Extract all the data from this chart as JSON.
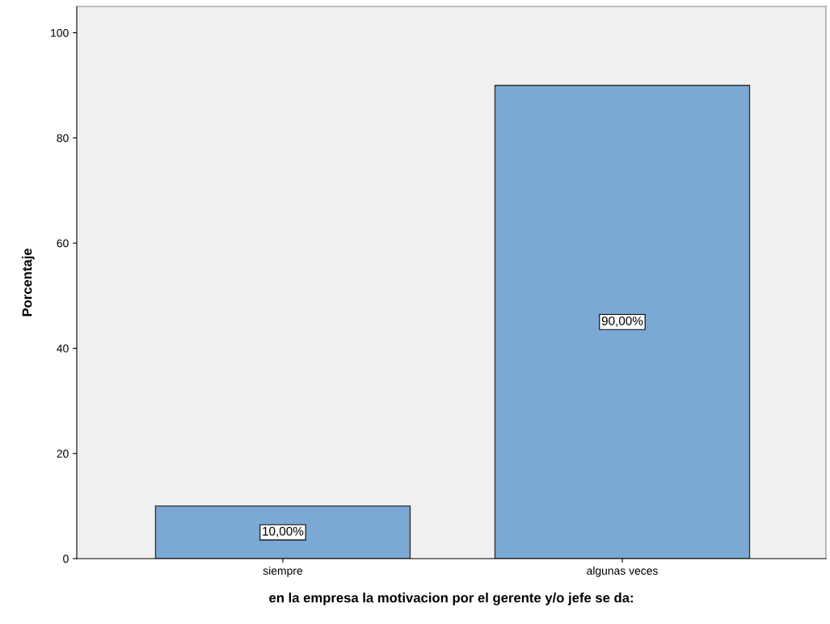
{
  "chart_data": {
    "type": "bar",
    "xlabel": "en la empresa la motivacion por el gerente y/o jefe se da:",
    "ylabel": "Porcentaje",
    "categories": [
      "siempre",
      "algunas veces"
    ],
    "values": [
      10,
      90
    ],
    "value_labels": [
      "10,00%",
      "90,00%"
    ],
    "color": "#7ba9d6",
    "ylim": [
      0,
      105
    ],
    "yticks": [
      0,
      20,
      40,
      60,
      80,
      100
    ],
    "grid": false,
    "legend": false
  }
}
